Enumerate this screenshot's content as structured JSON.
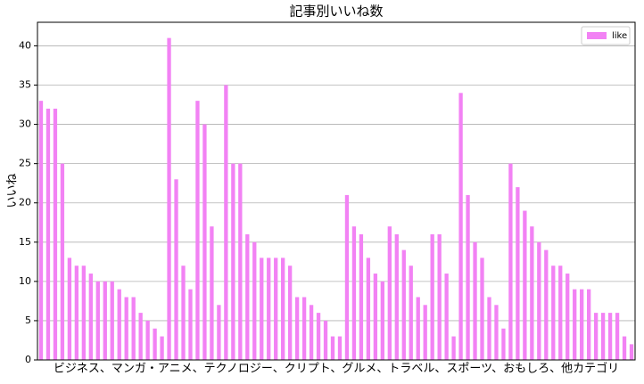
{
  "chart_data": {
    "type": "bar",
    "title": "記事別いいね数",
    "xlabel": "ビジネス、マンガ・アニメ、テクノロジー、クリプト、グルメ、トラベル、スポーツ、おもしろ、他カテゴリ",
    "ylabel": "いいね",
    "categories": [
      null,
      null,
      null,
      null,
      null,
      null,
      null,
      null,
      null,
      null,
      null,
      null,
      null,
      null,
      null,
      null,
      null,
      null,
      null,
      null,
      null,
      null,
      null,
      null,
      null,
      null,
      null,
      null,
      null,
      null,
      null,
      null,
      null,
      null,
      null,
      null,
      null,
      null,
      null,
      null,
      null,
      null,
      null,
      null,
      null,
      null,
      null,
      null,
      null,
      null,
      null,
      null,
      null,
      null,
      null,
      null,
      null,
      null,
      null,
      null,
      null,
      null,
      null,
      null,
      null,
      null,
      null,
      null,
      null,
      null,
      null,
      null,
      null,
      null,
      null,
      null,
      null,
      null,
      null,
      null,
      null,
      null,
      null,
      null
    ],
    "series": [
      {
        "name": "like",
        "color": "#f282f4",
        "values": [
          33,
          32,
          32,
          25,
          13,
          12,
          12,
          11,
          10,
          10,
          10,
          9,
          8,
          8,
          6,
          5,
          4,
          3,
          41,
          23,
          12,
          9,
          33,
          30,
          17,
          7,
          35,
          25,
          25,
          16,
          15,
          13,
          13,
          13,
          13,
          12,
          8,
          8,
          7,
          6,
          5,
          3,
          3,
          21,
          17,
          16,
          13,
          11,
          10,
          17,
          16,
          14,
          12,
          8,
          7,
          16,
          16,
          11,
          3,
          34,
          21,
          15,
          13,
          8,
          7,
          4,
          25,
          22,
          19,
          17,
          15,
          14,
          12,
          12,
          11,
          9,
          9,
          9,
          6,
          6,
          6,
          6,
          3,
          2
        ]
      }
    ],
    "ylim": [
      0,
      43
    ],
    "yticks": [
      0,
      5,
      10,
      15,
      20,
      25,
      30,
      35,
      40
    ],
    "grid": true,
    "legend": "upper right"
  }
}
